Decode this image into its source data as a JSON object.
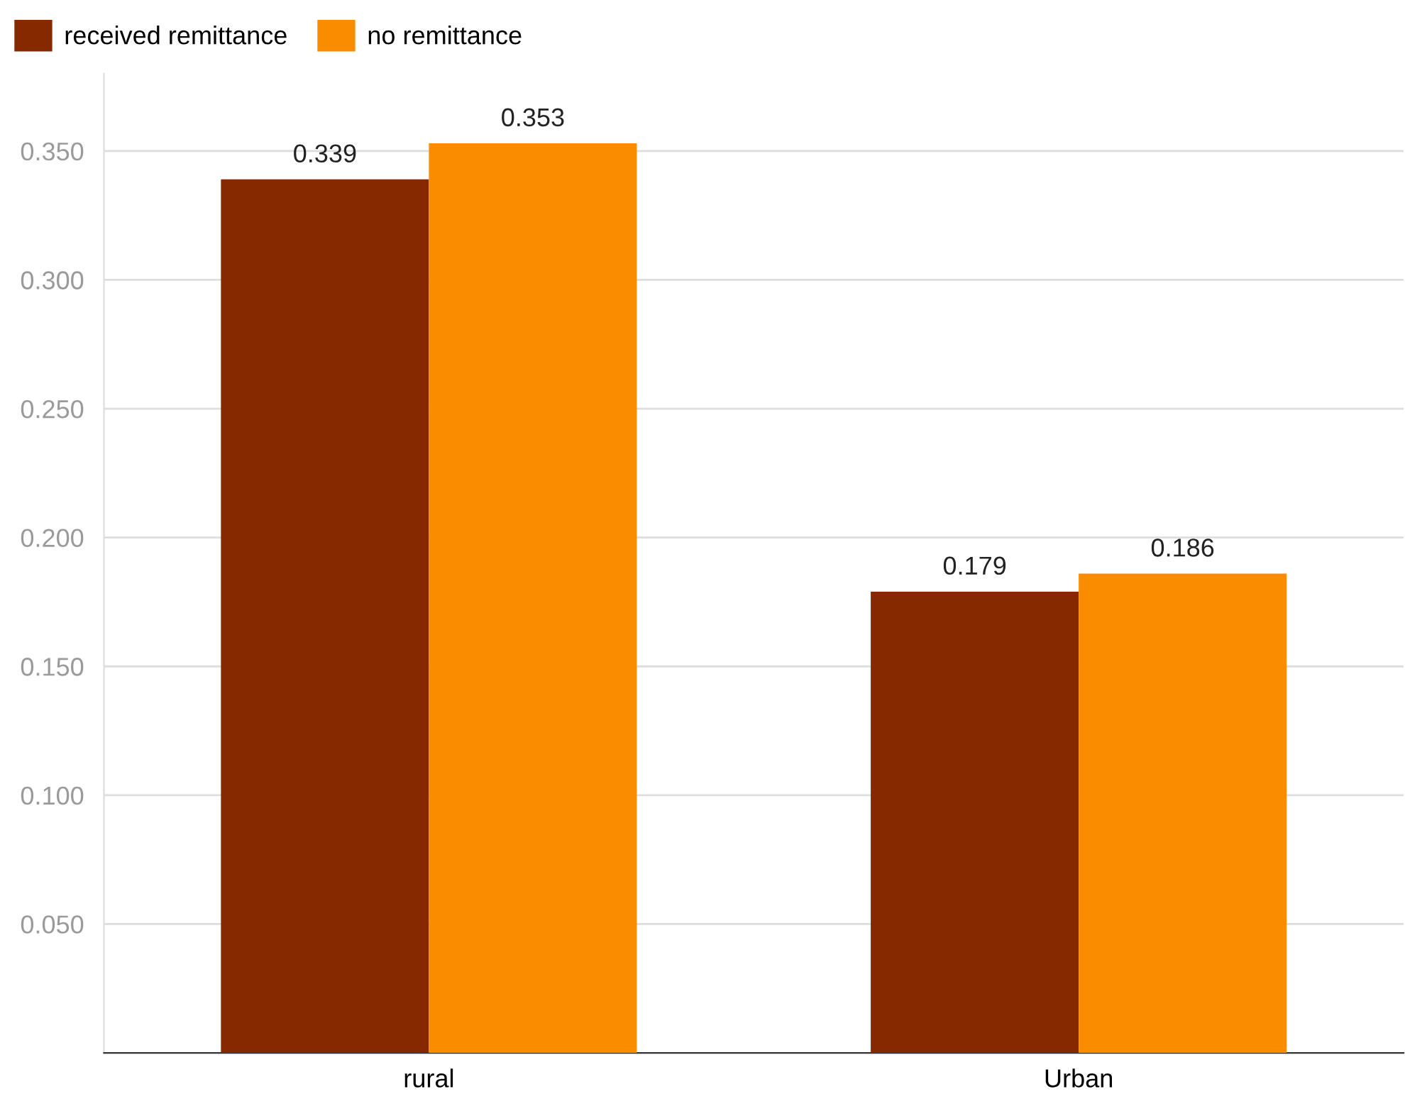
{
  "chart_data": {
    "type": "bar",
    "categories": [
      "rural",
      "Urban"
    ],
    "series": [
      {
        "name": "received remittance",
        "color": "#862800",
        "values": [
          0.339,
          0.179
        ]
      },
      {
        "name": "no remittance",
        "color": "#fa8c00",
        "values": [
          0.353,
          0.186
        ]
      }
    ],
    "ylim": [
      0,
      0.38
    ],
    "yticks": [
      {
        "value": 0.05,
        "label": "0.050"
      },
      {
        "value": 0.1,
        "label": "0.100"
      },
      {
        "value": 0.15,
        "label": "0.150"
      },
      {
        "value": 0.2,
        "label": "0.200"
      },
      {
        "value": 0.25,
        "label": "0.250"
      },
      {
        "value": 0.3,
        "label": "0.300"
      },
      {
        "value": 0.35,
        "label": "0.350"
      }
    ],
    "grid": "y",
    "legend": "top left",
    "data_labels": true
  }
}
